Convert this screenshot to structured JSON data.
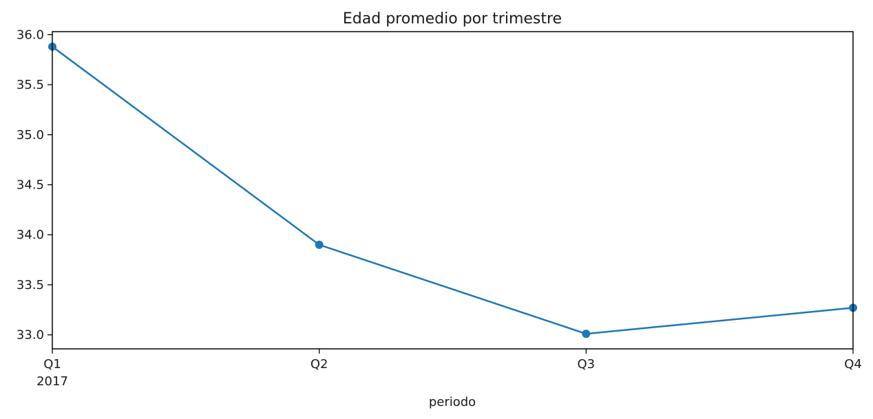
{
  "chart_data": {
    "type": "line",
    "title": "Edad promedio por trimestre",
    "xlabel": "periodo",
    "ylabel": "",
    "categories": [
      "Q1",
      "Q2",
      "Q3",
      "Q4"
    ],
    "year_label": "2017",
    "series": [
      {
        "values": [
          35.88,
          33.9,
          33.01,
          33.27
        ]
      }
    ],
    "ylim": [
      32.86,
      36.03
    ],
    "yticks": [
      "33.0",
      "33.5",
      "34.0",
      "34.5",
      "35.0",
      "35.5",
      "36.0"
    ],
    "grid": false,
    "marker": "circle"
  },
  "colors": {
    "series": "#1f77b4",
    "axis": "#000000",
    "text": "#1a1a1a"
  }
}
